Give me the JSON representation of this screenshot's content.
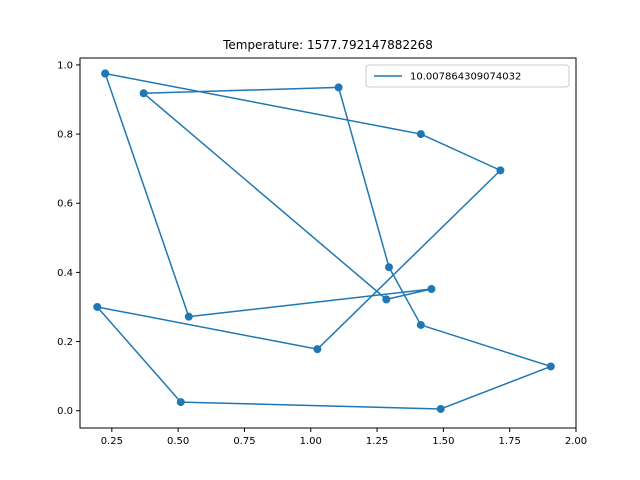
{
  "chart_data": {
    "type": "line",
    "title": "Temperature: 1577.792147882268",
    "xlabel": "",
    "ylabel": "",
    "xlim": [
      0.13,
      2.0
    ],
    "ylim": [
      -0.05,
      1.02
    ],
    "xticks": [
      "0.25",
      "0.50",
      "0.75",
      "1.00",
      "1.25",
      "1.50",
      "1.75",
      "2.00"
    ],
    "xtick_values": [
      0.25,
      0.5,
      0.75,
      1.0,
      1.25,
      1.5,
      1.75,
      2.0
    ],
    "yticks": [
      "0.0",
      "0.2",
      "0.4",
      "0.6",
      "0.8",
      "1.0"
    ],
    "ytick_values": [
      0.0,
      0.2,
      0.4,
      0.6,
      0.8,
      1.0
    ],
    "grid": false,
    "legend_position": "top-right",
    "series": [
      {
        "name": "10.007864309074032",
        "color": "#1f77b4",
        "marker": "circle",
        "x": [
          0.225,
          1.415,
          1.715,
          1.025,
          0.195,
          0.51,
          1.49,
          1.905,
          1.415,
          1.295,
          1.105,
          0.37,
          1.285,
          1.455,
          0.54,
          0.225
        ],
        "y": [
          0.975,
          0.8,
          0.695,
          0.178,
          0.3,
          0.025,
          0.005,
          0.128,
          0.248,
          0.415,
          0.935,
          0.918,
          0.322,
          0.352,
          0.272,
          0.975
        ]
      }
    ]
  }
}
